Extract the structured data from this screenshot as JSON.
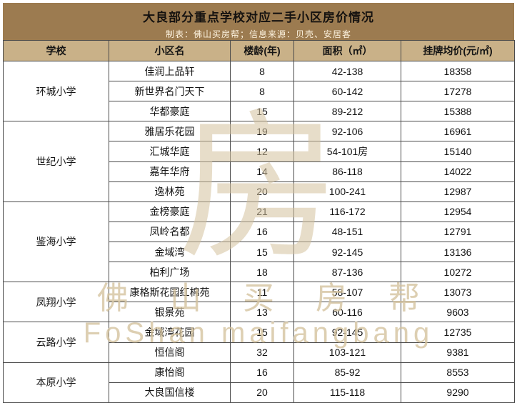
{
  "title": "大良部分重点学校对应二手小区房价情况",
  "subtitle": "制表：佛山买房帮；信息来源：贝壳、安居客",
  "watermark": {
    "logo_char": "房",
    "line1": "佛山买房帮",
    "line2": "FoShan maifangbang"
  },
  "colors": {
    "title_bg": "#9c7b50",
    "header_bg": "#c9b188",
    "border": "#4a4a4a",
    "watermark": "#d3c19c"
  },
  "chart_data": {
    "type": "table",
    "title": "大良部分重点学校对应二手小区房价情况",
    "headers": [
      "学校",
      "小区名",
      "楼龄(年)",
      "面积（㎡）",
      "挂牌均价(元/㎡)"
    ],
    "groups": [
      {
        "school": "环城小学",
        "rows": [
          [
            "佳润上品轩",
            "8",
            "42-138",
            "18358"
          ],
          [
            "新世界名门天下",
            "8",
            "60-142",
            "17278"
          ],
          [
            "华都豪庭",
            "15",
            "89-212",
            "15388"
          ]
        ]
      },
      {
        "school": "世纪小学",
        "rows": [
          [
            "雅居乐花园",
            "19",
            "92-106",
            "16961"
          ],
          [
            "汇城华庭",
            "12",
            "54-101房",
            "15140"
          ],
          [
            "嘉年华府",
            "14",
            "86-118",
            "14022"
          ],
          [
            "逸林苑",
            "20",
            "100-241",
            "12987"
          ]
        ]
      },
      {
        "school": "鉴海小学",
        "rows": [
          [
            "金榜豪庭",
            "21",
            "116-172",
            "12954"
          ],
          [
            "凤岭名都",
            "16",
            "48-151",
            "12791"
          ],
          [
            "金域湾",
            "15",
            "92-145",
            "13136"
          ],
          [
            "柏利广场",
            "18",
            "87-136",
            "10272"
          ]
        ]
      },
      {
        "school": "凤翔小学",
        "rows": [
          [
            "康格斯花园红棉苑",
            "11",
            "58-107",
            "13073"
          ],
          [
            "银景苑",
            "13",
            "60-116",
            "9603"
          ]
        ]
      },
      {
        "school": "云路小学",
        "rows": [
          [
            "金域湾花园",
            "15",
            "92-145",
            "12735"
          ],
          [
            "恒信阁",
            "32",
            "103-121",
            "9381"
          ]
        ]
      },
      {
        "school": "本原小学",
        "rows": [
          [
            "康怡阁",
            "16",
            "85-92",
            "8553"
          ],
          [
            "大良国信楼",
            "20",
            "115-118",
            "9290"
          ]
        ]
      }
    ]
  }
}
